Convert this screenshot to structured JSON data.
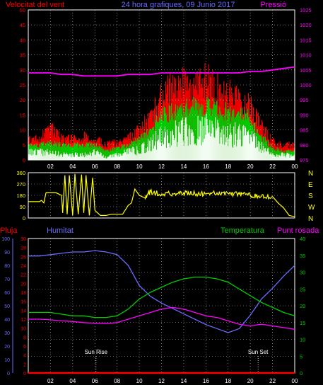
{
  "header": {
    "left_title": "Velocitat del vent",
    "center_title": "24 hora grafiques, 09 Junio 2017",
    "right_title": "Pressió"
  },
  "colors": {
    "wind_gust": "#ff0000",
    "wind_avg": "#00cc00",
    "wind_min": "#ffffff",
    "pressure": "#ff00ff",
    "direction": "#ffff00",
    "rain": "#ff0000",
    "humidity": "#6a6aff",
    "temperature": "#00cc00",
    "dewpoint": "#ff00ff",
    "frame": "#ffffff",
    "grid": "#ffffff"
  },
  "x_ticks": [
    "02",
    "04",
    "06",
    "08",
    "10",
    "12",
    "14",
    "16",
    "18",
    "20",
    "22",
    "00"
  ],
  "x_ticks_bottom": [
    "02",
    "04",
    "06",
    "08",
    "10",
    "12",
    "14",
    "16",
    "18",
    "20",
    "22",
    "00"
  ],
  "chart_data": [
    {
      "type": "area",
      "name": "wind",
      "left_axis_label": "Velocitat del vent",
      "right_axis_label": "Pressió",
      "left_ticks": [
        0,
        5,
        10,
        15,
        20,
        25,
        30,
        35,
        40,
        45,
        50
      ],
      "right_ticks": [
        975,
        980,
        985,
        990,
        995,
        1000,
        1005,
        1010,
        1015,
        1020,
        1025
      ],
      "ylim_left": [
        0,
        50
      ],
      "ylim_right": [
        975,
        1025
      ],
      "x": [
        0,
        1,
        2,
        3,
        4,
        5,
        6,
        7,
        8,
        9,
        10,
        11,
        12,
        13,
        14,
        15,
        16,
        17,
        18,
        19,
        20,
        21,
        22,
        23,
        24
      ],
      "gust": [
        7,
        7,
        11,
        7,
        7,
        8,
        7,
        5,
        6,
        7,
        10,
        14,
        22,
        24,
        25,
        26,
        26,
        24,
        22,
        20,
        18,
        11,
        6,
        5,
        5
      ],
      "avg": [
        5,
        5,
        6,
        5,
        5,
        5,
        5,
        3,
        4,
        5,
        7,
        10,
        15,
        16,
        17,
        18,
        18,
        17,
        16,
        15,
        14,
        8,
        4,
        3,
        3
      ],
      "min": [
        3,
        3,
        3,
        2,
        2,
        2,
        3,
        1,
        2,
        3,
        4,
        6,
        9,
        10,
        11,
        12,
        12,
        11,
        10,
        10,
        9,
        5,
        2,
        2,
        2
      ],
      "pressure": [
        1004,
        1004,
        1004,
        1003.5,
        1003.5,
        1003,
        1003,
        1003,
        1003,
        1003.5,
        1003.5,
        1003.5,
        1004,
        1004,
        1004,
        1004,
        1004,
        1004,
        1004,
        1004,
        1004.5,
        1004.5,
        1005,
        1005.5,
        1006
      ]
    },
    {
      "type": "line",
      "name": "direction",
      "left_ticks": [
        0,
        90,
        180,
        270,
        360
      ],
      "right_labels": [
        "N",
        "W",
        "S",
        "E",
        "N"
      ],
      "ylim": [
        0,
        360
      ],
      "x": [
        0,
        0.5,
        1.0,
        1.2,
        1.4,
        1.6,
        2.0,
        2.5,
        3.0,
        3.1,
        3.3,
        3.5,
        3.7,
        4.0,
        4.2,
        4.5,
        4.8,
        5.0,
        5.2,
        5.5,
        5.8,
        6.0,
        6.5,
        7.0,
        7.5,
        8.0,
        8.5,
        9.0,
        9.3,
        9.6,
        10.0,
        10.5,
        11.0,
        12,
        13,
        14,
        15,
        16,
        17,
        18,
        19,
        20,
        21,
        22,
        22.5,
        23.0,
        23.5,
        24.0
      ],
      "values": [
        130,
        130,
        130,
        140,
        120,
        200,
        200,
        200,
        180,
        40,
        340,
        30,
        340,
        20,
        350,
        30,
        345,
        40,
        340,
        20,
        320,
        60,
        20,
        20,
        30,
        30,
        30,
        100,
        120,
        230,
        180,
        160,
        210,
        190,
        195,
        200,
        195,
        190,
        200,
        195,
        190,
        180,
        170,
        170,
        120,
        80,
        20,
        10
      ]
    },
    {
      "type": "line",
      "name": "weather",
      "labels": {
        "rain": "Pluja",
        "humidity": "Humitat",
        "temperature": "Temperatura",
        "dewpoint": "Punt rosada",
        "sunrise": "Sun Rise",
        "sunset": "Sun Set"
      },
      "rain_ticks": [
        0,
        2,
        4,
        6,
        8,
        10,
        12,
        14,
        16,
        18,
        20,
        22,
        24,
        26,
        28,
        30
      ],
      "humidity_ticks": [
        0,
        10,
        20,
        30,
        40,
        50,
        60,
        70,
        80,
        90,
        100
      ],
      "temp_ticks": [
        0,
        5,
        10,
        15,
        20,
        25,
        30,
        35,
        40
      ],
      "x": [
        0,
        1,
        2,
        3,
        4,
        5,
        6,
        7,
        8,
        9,
        10,
        11,
        12,
        13,
        14,
        15,
        16,
        17,
        18,
        19,
        20,
        21,
        22,
        23,
        24
      ],
      "rain": [
        0,
        0,
        0,
        0,
        0,
        0,
        0,
        0,
        0,
        0,
        0,
        0,
        0,
        0,
        0,
        0,
        0,
        0,
        0,
        0,
        0,
        0,
        0,
        0,
        0
      ],
      "humidity": [
        87,
        87,
        88,
        89,
        90,
        90,
        91,
        90,
        88,
        80,
        65,
        57,
        52,
        48,
        44,
        40,
        36,
        33,
        30,
        33,
        43,
        55,
        63,
        72,
        80
      ],
      "temperature": [
        18,
        18,
        18,
        17.5,
        17,
        17,
        16.5,
        16.5,
        17,
        19,
        22,
        24,
        25.5,
        27,
        28,
        28.5,
        28.5,
        28,
        27,
        25,
        23,
        21,
        19.5,
        18,
        17
      ],
      "dewpoint": [
        16,
        16,
        15.8,
        15.5,
        15.3,
        15,
        14.8,
        14.7,
        15,
        16,
        17,
        18,
        19,
        19.5,
        19,
        18,
        17,
        16.5,
        15.5,
        14.5,
        14,
        14.5,
        14,
        13.5,
        13
      ]
    }
  ]
}
